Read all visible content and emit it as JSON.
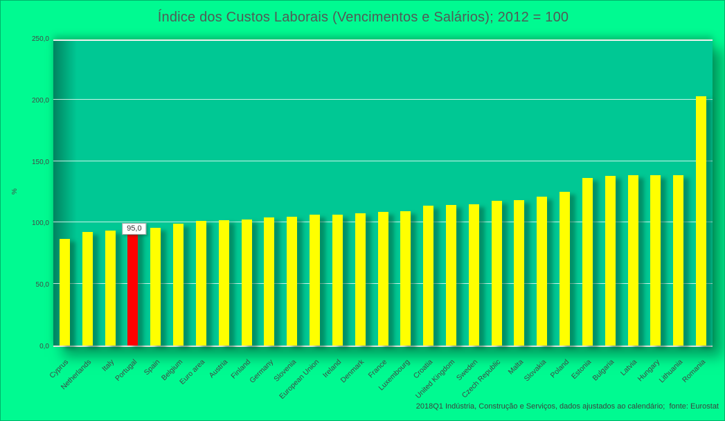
{
  "title": "Índice dos Custos Laborais (Vencimentos e Salários); 2012 = 100",
  "footer_note": "2018Q1 Indústria, Construção e Serviços, dados ajustados ao calendário;  fonte: Eurostat",
  "colors": {
    "chart_background": "#00FA91",
    "plot_background": "#00C894",
    "bar": "#FFFF00",
    "highlight_bar": "#FF0000",
    "gridline": "rgba(255,255,255,0.8)",
    "text": "#464646"
  },
  "chart_data": {
    "type": "bar",
    "title": "Índice dos Custos Laborais (Vencimentos e Salários); 2012 = 100",
    "xlabel": "",
    "ylabel": "%",
    "ylim": [
      0,
      250
    ],
    "grid": true,
    "legend": "none",
    "y_ticks": [
      {
        "value": 0,
        "label": "0,0"
      },
      {
        "value": 50,
        "label": "50,0"
      },
      {
        "value": 100,
        "label": "100,0"
      },
      {
        "value": 150,
        "label": "150,0"
      },
      {
        "value": 200,
        "label": "200,0"
      },
      {
        "value": 250,
        "label": "250,0"
      }
    ],
    "categories": [
      "Cyprus",
      "Netherlands",
      "Italy",
      "Portugal",
      "Spain",
      "Belgium",
      "Euro area",
      "Austria",
      "Finland",
      "Germany",
      "Slovenia",
      "European Union",
      "Ireland",
      "Denmark",
      "France",
      "Luxembourg",
      "Croatia",
      "United Kingdom",
      "Sweden",
      "Czech Republic",
      "Malta",
      "Slovakia",
      "Poland",
      "Estonia",
      "Bulgaria",
      "Latvia",
      "Hungary",
      "Lithuania",
      "Romania"
    ],
    "values": [
      86.5,
      92.5,
      93.5,
      95.0,
      96.0,
      99.0,
      101.5,
      102.0,
      102.5,
      104.0,
      105.0,
      106.5,
      106.5,
      107.5,
      108.5,
      109.0,
      114.0,
      114.5,
      115.0,
      117.5,
      118.0,
      121.0,
      125.0,
      136.5,
      138.0,
      138.5,
      138.5,
      138.5,
      202.5
    ],
    "highlight": {
      "category": "Portugal",
      "index": 3,
      "data_label": "95,0",
      "color": "#FF0000"
    },
    "source_note": "2018Q1 Indústria, Construção e Serviços, dados ajustados ao calendário;  fonte: Eurostat"
  }
}
